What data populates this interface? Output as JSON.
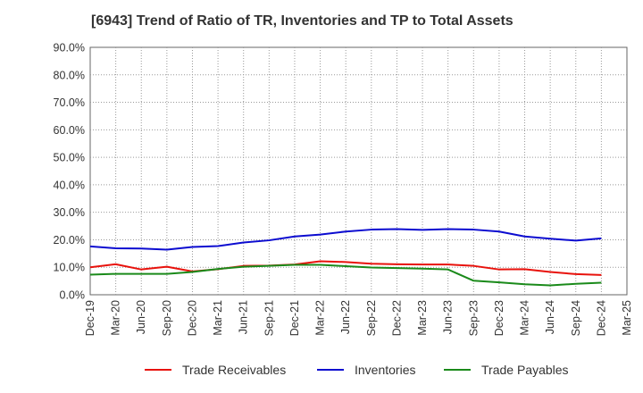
{
  "chart_data": {
    "type": "line",
    "title": "[6943]  Trend of Ratio of TR, Inventories and TP to Total Assets",
    "xlabel": "",
    "ylabel": "",
    "ylim": [
      0,
      90
    ],
    "yticks": [
      "0.0%",
      "10.0%",
      "20.0%",
      "30.0%",
      "40.0%",
      "50.0%",
      "60.0%",
      "70.0%",
      "80.0%",
      "90.0%"
    ],
    "xticks": [
      "Dec-19",
      "Mar-20",
      "Jun-20",
      "Sep-20",
      "Dec-20",
      "Mar-21",
      "Jun-21",
      "Sep-21",
      "Dec-21",
      "Mar-22",
      "Jun-22",
      "Sep-22",
      "Dec-22",
      "Mar-23",
      "Jun-23",
      "Sep-23",
      "Dec-23",
      "Mar-24",
      "Jun-24",
      "Sep-24",
      "Dec-24",
      "Mar-25"
    ],
    "x": [
      "Dec-19",
      "Mar-20",
      "Jun-20",
      "Sep-20",
      "Dec-20",
      "Mar-21",
      "Jun-21",
      "Sep-21",
      "Dec-21",
      "Mar-22",
      "Jun-22",
      "Sep-22",
      "Dec-22",
      "Mar-23",
      "Jun-23",
      "Sep-23",
      "Dec-23",
      "Mar-24",
      "Jun-24",
      "Sep-24",
      "Dec-24"
    ],
    "grid": true,
    "legend_position": "bottom",
    "series": [
      {
        "name": "Trade Receivables",
        "color": "#e8120c",
        "values": [
          10.0,
          11.1,
          9.2,
          10.2,
          8.5,
          9.3,
          10.5,
          10.6,
          11.0,
          12.2,
          11.9,
          11.3,
          11.1,
          11.0,
          11.0,
          10.5,
          9.2,
          9.3,
          8.3,
          7.5,
          7.2
        ]
      },
      {
        "name": "Inventories",
        "color": "#0c0cd0",
        "values": [
          17.6,
          16.9,
          16.8,
          16.4,
          17.4,
          17.7,
          19.0,
          19.8,
          21.2,
          21.9,
          23.0,
          23.7,
          23.9,
          23.6,
          23.9,
          23.7,
          23.0,
          21.2,
          20.4,
          19.7,
          20.5
        ]
      },
      {
        "name": "Trade Payables",
        "color": "#1a8a1a",
        "values": [
          7.3,
          7.6,
          7.6,
          7.6,
          8.3,
          9.4,
          10.2,
          10.5,
          10.9,
          10.9,
          10.4,
          9.9,
          9.7,
          9.5,
          9.2,
          5.1,
          4.5,
          3.8,
          3.4,
          4.0,
          4.4
        ]
      }
    ]
  }
}
